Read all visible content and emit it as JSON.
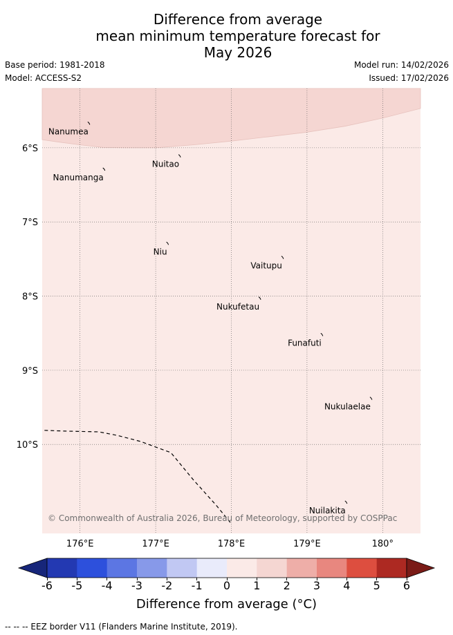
{
  "title": {
    "line1": "Difference from average",
    "line2": "mean minimum temperature forecast for",
    "line3": "May 2026"
  },
  "meta": {
    "base_period": "Base period: 1981-2018",
    "model": "Model: ACCESS-S2",
    "model_run": "Model run: 14/02/2026",
    "issued": "Issued: 17/02/2026"
  },
  "map": {
    "lon_range": [
      175.5,
      180.5
    ],
    "lat_range": [
      -11.2,
      -5.2
    ],
    "lon_ticks": [
      {
        "value": 176,
        "label": "176°E"
      },
      {
        "value": 177,
        "label": "177°E"
      },
      {
        "value": 178,
        "label": "178°E"
      },
      {
        "value": 179,
        "label": "179°E"
      },
      {
        "value": 180,
        "label": "180°"
      }
    ],
    "lat_ticks": [
      {
        "value": -6,
        "label": "6°S"
      },
      {
        "value": -7,
        "label": "7°S"
      },
      {
        "value": -8,
        "label": "8°S"
      },
      {
        "value": -9,
        "label": "9°S"
      },
      {
        "value": -10,
        "label": "10°S"
      }
    ],
    "background_class": {
      "range": "0 to 1",
      "color": "#fbeae7"
    },
    "north_region": {
      "range": "1 to 2",
      "color": "#f5d6d2",
      "boundary": [
        [
          175.5,
          -5.89
        ],
        [
          175.7,
          -5.92
        ],
        [
          176.0,
          -5.96
        ],
        [
          176.3,
          -5.995
        ],
        [
          176.6,
          -6.0
        ],
        [
          177.0,
          -6.0
        ],
        [
          177.5,
          -5.96
        ],
        [
          178.0,
          -5.91
        ],
        [
          178.5,
          -5.85
        ],
        [
          179.0,
          -5.79
        ],
        [
          179.5,
          -5.71
        ],
        [
          180.0,
          -5.6
        ],
        [
          180.5,
          -5.47
        ]
      ]
    },
    "places": [
      {
        "name": "Nanumea",
        "lon": 176.12,
        "lat": -5.67
      },
      {
        "name": "Nuitao",
        "lon": 177.32,
        "lat": -6.11
      },
      {
        "name": "Nanumanga",
        "lon": 176.32,
        "lat": -6.29
      },
      {
        "name": "Niu",
        "lon": 177.16,
        "lat": -7.29
      },
      {
        "name": "Vaitupu",
        "lon": 178.68,
        "lat": -7.48
      },
      {
        "name": "Nukufetau",
        "lon": 178.38,
        "lat": -8.03
      },
      {
        "name": "Funafuti",
        "lon": 179.2,
        "lat": -8.52
      },
      {
        "name": "Nukulaelae",
        "lon": 179.85,
        "lat": -9.38
      },
      {
        "name": "Nuilakita",
        "lon": 179.52,
        "lat": -10.78
      }
    ],
    "eez_border": [
      [
        175.53,
        -9.81
      ],
      [
        175.8,
        -9.82
      ],
      [
        176.25,
        -9.83
      ],
      [
        176.5,
        -9.88
      ],
      [
        176.8,
        -9.96
      ],
      [
        177.2,
        -10.11
      ],
      [
        177.5,
        -10.48
      ],
      [
        177.8,
        -10.82
      ],
      [
        178.0,
        -11.07
      ]
    ],
    "copyright": "© Commonwealth of Australia 2026, Bureau of Meteorology, supported by COSPPac"
  },
  "colorbar": {
    "ticks": [
      "-6",
      "-5",
      "-4",
      "-3",
      "-2",
      "-1",
      "0",
      "1",
      "2",
      "3",
      "4",
      "5",
      "6"
    ],
    "colors": [
      "#2339b2",
      "#2d50dc",
      "#5c76e3",
      "#8799e9",
      "#c1c8f3",
      "#e9ebfb",
      "#fbeae7",
      "#f5d6d2",
      "#eeaea8",
      "#e8877f",
      "#dd4e3f",
      "#ad2922"
    ],
    "under_color": "#17267a",
    "over_color": "#7a1b17",
    "label": "Difference from average (°C)"
  },
  "footer": "--  --  -- EEZ border V11 (Flanders Marine Institute, 2019)."
}
